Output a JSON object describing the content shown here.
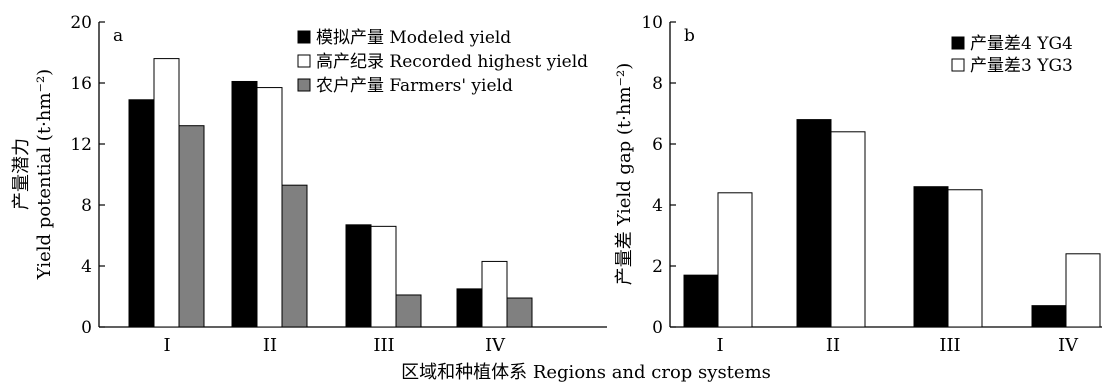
{
  "chart_data": [
    {
      "type": "bar",
      "panel_label": "a",
      "categories": [
        "I",
        "II",
        "III",
        "IV"
      ],
      "series": [
        {
          "name": "模拟产量 Modeled yield",
          "values": [
            14.9,
            16.1,
            6.7,
            2.5
          ],
          "color": "#000000"
        },
        {
          "name": "高产纪录 Recorded highest yield",
          "values": [
            17.6,
            15.7,
            6.6,
            4.3
          ],
          "color": "#ffffff"
        },
        {
          "name": "农户产量 Farmers' yield",
          "values": [
            13.2,
            9.3,
            2.1,
            1.9
          ],
          "color": "#808080"
        }
      ],
      "ylabel_cn": "产量潜力",
      "ylabel_en": "Yield potential (t·hm⁻²)",
      "ylim": [
        0,
        20
      ],
      "yticks": [
        "0",
        "4",
        "8",
        "12",
        "16",
        "20"
      ],
      "legend_position": "top-right"
    },
    {
      "type": "bar",
      "panel_label": "b",
      "categories": [
        "I",
        "II",
        "III",
        "IV"
      ],
      "series": [
        {
          "name": "产量差4 YG4",
          "values": [
            1.7,
            6.8,
            4.6,
            0.7
          ],
          "color": "#000000"
        },
        {
          "name": "产量差3 YG3",
          "values": [
            4.4,
            6.4,
            4.5,
            2.4
          ],
          "color": "#ffffff"
        }
      ],
      "ylabel": "产量差 Yield gap (t·hm⁻²)",
      "ylim": [
        0,
        10
      ],
      "yticks": [
        "0",
        "2",
        "4",
        "6",
        "8",
        "10"
      ],
      "legend_position": "top-right"
    }
  ],
  "xlabel": "区域和种植体系  Regions and crop systems"
}
